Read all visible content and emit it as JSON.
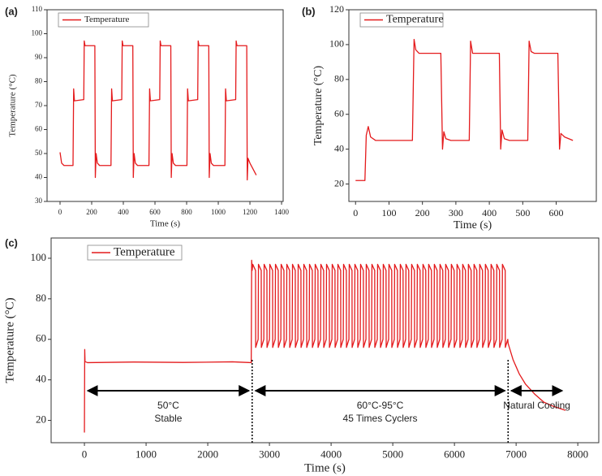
{
  "chart_data": [
    {
      "type": "line",
      "panel_label": "(a)",
      "x_label": "Time (s)",
      "y_label": "Temperature (°C)",
      "legend": "upper left",
      "xlim": [
        -82,
        1410
      ],
      "xticks": [
        0,
        200,
        400,
        600,
        800,
        1000,
        1200,
        1400
      ],
      "ylim": [
        30,
        110
      ],
      "yticks": [
        30,
        40,
        50,
        60,
        70,
        80,
        90,
        100,
        110
      ],
      "x": [
        0,
        10,
        25,
        82,
        86,
        91,
        150,
        153,
        158,
        220,
        223,
        228,
        236,
        250,
        322,
        326,
        331,
        390,
        393,
        398,
        460,
        463,
        468,
        476,
        490,
        562,
        566,
        571,
        630,
        633,
        638,
        700,
        703,
        708,
        716,
        730,
        802,
        806,
        811,
        870,
        873,
        878,
        940,
        943,
        948,
        956,
        970,
        1042,
        1046,
        1051,
        1110,
        1113,
        1118,
        1180,
        1183,
        1188,
        1200,
        1240
      ],
      "series": [
        {
          "name": "Temperature",
          "color": "#e41a1c",
          "values": [
            50.5,
            46,
            45,
            45,
            77,
            72,
            72.5,
            97,
            95,
            95,
            40,
            50,
            46,
            45,
            45,
            77,
            72,
            72.5,
            97,
            95,
            95,
            40,
            50,
            46,
            45,
            45,
            77,
            72,
            72.5,
            97,
            95,
            95,
            40,
            50,
            46,
            45,
            45,
            77,
            72,
            72.5,
            97,
            95,
            95,
            40,
            50,
            46,
            45,
            45,
            77,
            72,
            72.5,
            97,
            95,
            95,
            39,
            48,
            46,
            41
          ]
        }
      ]
    },
    {
      "type": "line",
      "panel_label": "(b)",
      "x_label": "Time (s)",
      "y_label": "Temperature (°C)",
      "legend": "upper left",
      "xlim": [
        -20,
        720
      ],
      "xticks": [
        0,
        100,
        200,
        300,
        400,
        500,
        600
      ],
      "ylim": [
        10,
        120
      ],
      "yticks": [
        20,
        40,
        60,
        80,
        100,
        120
      ],
      "x": [
        0,
        28,
        32,
        38,
        45,
        60,
        170,
        175,
        180,
        190,
        255,
        260,
        264,
        270,
        285,
        340,
        344,
        350,
        430,
        434,
        438,
        445,
        460,
        515,
        519,
        525,
        535,
        605,
        610,
        614,
        625,
        650
      ],
      "series": [
        {
          "name": "Temperature",
          "color": "#e41a1c",
          "values": [
            22,
            22,
            48,
            53,
            47,
            45,
            45,
            103,
            97,
            95,
            95,
            40,
            50,
            46,
            45,
            45,
            102,
            95,
            95,
            40,
            51,
            46,
            45,
            45,
            102,
            96,
            95,
            95,
            40,
            49,
            47,
            45
          ]
        }
      ]
    },
    {
      "type": "line",
      "panel_label": "(c)",
      "x_label": "Time (s)",
      "y_label": "Temperature (°C)",
      "legend": "upper left",
      "xlim": [
        -540,
        8340
      ],
      "xticks": [
        0,
        1000,
        2000,
        3000,
        4000,
        5000,
        6000,
        7000,
        8000
      ],
      "ylim": [
        9,
        110
      ],
      "yticks": [
        20,
        40,
        60,
        80,
        100
      ],
      "phase_boundaries": [
        2720,
        6870
      ],
      "annotations": [
        {
          "lines": [
            "50°C",
            "Stable"
          ]
        },
        {
          "lines": [
            "60°C-95°C",
            "45 Times Cyclers"
          ]
        },
        {
          "lines": [
            "Natural Cooling"
          ]
        }
      ],
      "x": [
        0,
        5,
        10,
        50,
        800,
        1600,
        2400,
        2705,
        2712,
        2720,
        2730,
        2775,
        2777,
        2817,
        2822,
        2867,
        2869,
        2909,
        2914,
        2959,
        2961,
        3001,
        3006,
        3051,
        3053,
        3093,
        3098,
        3143,
        3145,
        3185,
        3190,
        3235,
        3237,
        3277,
        3282,
        3327,
        3329,
        3369,
        3374,
        3419,
        3421,
        3461,
        3466,
        3511,
        3513,
        3553,
        3558,
        3603,
        3605,
        3645,
        3650,
        3695,
        3697,
        3737,
        3742,
        3787,
        3789,
        3829,
        3834,
        3879,
        3881,
        3921,
        3926,
        3971,
        3973,
        4013,
        4018,
        4063,
        4065,
        4105,
        4110,
        4155,
        4157,
        4197,
        4202,
        4247,
        4249,
        4289,
        4294,
        4339,
        4341,
        4381,
        4386,
        4431,
        4433,
        4473,
        4478,
        4523,
        4525,
        4565,
        4570,
        4615,
        4617,
        4657,
        4662,
        4707,
        4709,
        4749,
        4754,
        4799,
        4801,
        4841,
        4846,
        4891,
        4893,
        4933,
        4938,
        4983,
        4985,
        5025,
        5030,
        5075,
        5077,
        5117,
        5122,
        5167,
        5169,
        5209,
        5214,
        5259,
        5261,
        5301,
        5306,
        5351,
        5353,
        5393,
        5398,
        5443,
        5445,
        5485,
        5490,
        5535,
        5537,
        5577,
        5582,
        5627,
        5629,
        5669,
        5674,
        5719,
        5721,
        5761,
        5766,
        5811,
        5813,
        5853,
        5858,
        5903,
        5905,
        5945,
        5950,
        5995,
        5997,
        6037,
        6042,
        6087,
        6089,
        6129,
        6134,
        6179,
        6181,
        6221,
        6226,
        6271,
        6273,
        6313,
        6318,
        6363,
        6365,
        6405,
        6410,
        6455,
        6457,
        6497,
        6502,
        6547,
        6549,
        6589,
        6594,
        6639,
        6641,
        6681,
        6686,
        6731,
        6733,
        6773,
        6778,
        6823,
        6825,
        6865,
        6870,
        6950,
        7050,
        7150,
        7300,
        7450,
        7600,
        7800
      ],
      "series": [
        {
          "name": "Temperature",
          "color": "#e41a1c",
          "values": [
            14,
            55,
            49,
            48.5,
            48.8,
            48.6,
            48.9,
            48.5,
            99,
            94,
            97,
            94,
            56,
            60,
            97,
            94,
            56,
            60,
            97,
            94,
            56,
            60,
            97,
            94,
            56,
            60,
            97,
            94,
            56,
            60,
            97,
            94,
            56,
            60,
            97,
            94,
            56,
            60,
            97,
            94,
            56,
            60,
            97,
            94,
            56,
            60,
            97,
            94,
            56,
            60,
            97,
            94,
            56,
            60,
            97,
            94,
            56,
            60,
            97,
            94,
            56,
            60,
            97,
            94,
            56,
            60,
            97,
            94,
            56,
            60,
            97,
            94,
            56,
            60,
            97,
            94,
            56,
            60,
            97,
            94,
            56,
            60,
            97,
            94,
            56,
            60,
            97,
            94,
            56,
            60,
            97,
            94,
            56,
            60,
            97,
            94,
            56,
            60,
            97,
            94,
            56,
            60,
            97,
            94,
            56,
            60,
            97,
            94,
            56,
            60,
            97,
            94,
            56,
            60,
            97,
            94,
            56,
            60,
            97,
            94,
            56,
            60,
            97,
            94,
            56,
            60,
            97,
            94,
            56,
            60,
            97,
            94,
            56,
            60,
            97,
            94,
            56,
            60,
            97,
            94,
            56,
            60,
            97,
            94,
            56,
            60,
            97,
            94,
            56,
            60,
            97,
            94,
            56,
            60,
            97,
            94,
            56,
            60,
            97,
            94,
            56,
            60,
            97,
            94,
            56,
            60,
            97,
            94,
            56,
            60,
            97,
            94,
            56,
            60,
            97,
            94,
            56,
            60,
            97,
            94,
            56,
            60,
            97,
            94,
            56,
            60,
            97,
            94,
            56,
            60,
            58,
            50,
            43,
            38,
            33,
            29,
            27,
            25
          ]
        }
      ]
    }
  ]
}
